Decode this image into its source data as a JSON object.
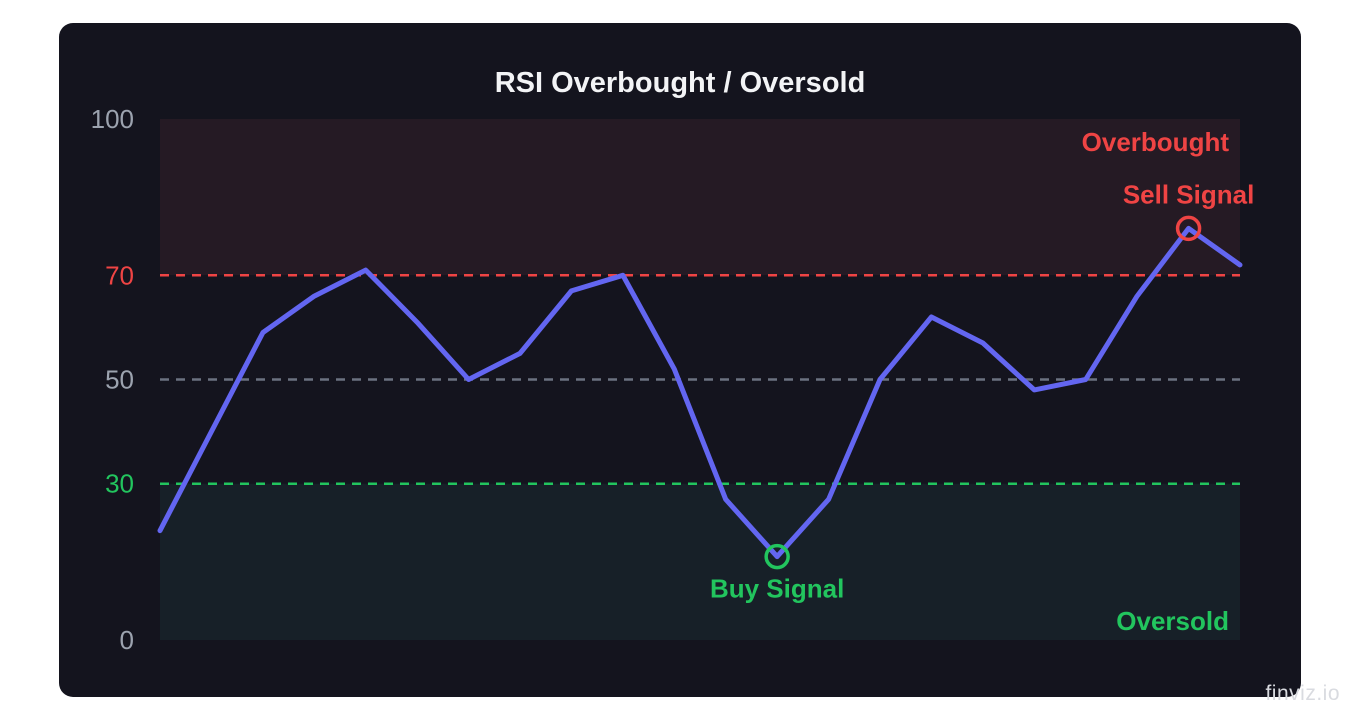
{
  "chart_data": {
    "type": "line",
    "title": "RSI Overbought / Oversold",
    "xlabel": "",
    "ylabel": "",
    "ylim": [
      0,
      100
    ],
    "yticks": [
      "100",
      "70",
      "50",
      "30",
      "0"
    ],
    "grid": false,
    "series": [
      {
        "values": [
          21,
          40,
          59,
          66,
          71,
          61,
          50,
          55,
          67,
          70,
          52,
          27,
          16,
          27,
          50,
          62,
          57,
          48,
          50,
          66,
          79,
          72
        ]
      }
    ],
    "thresholds": {
      "overbought": 70,
      "midline": 50,
      "oversold": 30
    },
    "zones": {
      "overbought_label": "Overbought",
      "oversold_label": "Oversold"
    },
    "signals": [
      {
        "label": "Sell Signal",
        "index": 20,
        "value": 79,
        "color": "#ef4444"
      },
      {
        "label": "Buy Signal",
        "index": 12,
        "value": 16,
        "color": "#22c55e"
      }
    ],
    "colors": {
      "line": "#6366f1",
      "overbought": "#ef4444",
      "oversold": "#22c55e",
      "midline": "#6b7280",
      "axis_text": "#9ca3af",
      "zone_overbought_fill": "#251a24",
      "zone_oversold_fill": "#172028",
      "plot_bg": "#14141e"
    }
  },
  "watermark": "finviz.io"
}
